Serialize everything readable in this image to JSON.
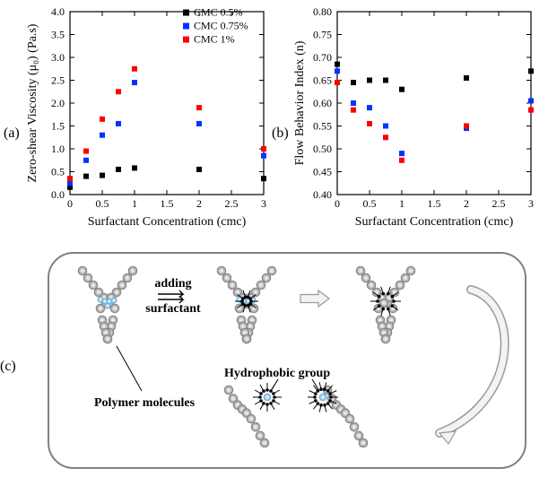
{
  "labels": {
    "a": "(a)",
    "b": "(b)",
    "c": "(c)"
  },
  "chartA": {
    "type": "scatter",
    "x_title": "Surfactant Concentration (cmc)",
    "y_title": "Zero-shear Viscosity (μ₀) (Pa.s)",
    "xlim": [
      0,
      3
    ],
    "xtick_step": 0.5,
    "ylim": [
      0,
      4
    ],
    "ytick_step": 0.5,
    "label_fontsize": 14,
    "tick_fontsize": 12,
    "marker": "square",
    "marker_size": 6,
    "axis_color": "#000000",
    "background": "#ffffff",
    "legend": {
      "x": 1.75,
      "y_top": 3.95,
      "items": [
        {
          "text": "CMC 0.5%",
          "color": "#000000"
        },
        {
          "text": "CMC 0.75%",
          "color": "#0033ff"
        },
        {
          "text": "CMC 1%",
          "color": "#ff0000"
        }
      ]
    },
    "series": [
      {
        "name": "0.5",
        "color": "#000000",
        "points": [
          [
            0.0,
            0.16
          ],
          [
            0.25,
            0.4
          ],
          [
            0.5,
            0.42
          ],
          [
            0.75,
            0.55
          ],
          [
            1.0,
            0.58
          ],
          [
            2.0,
            0.55
          ],
          [
            3.0,
            0.35
          ]
        ]
      },
      {
        "name": "0.75",
        "color": "#0033ff",
        "points": [
          [
            0.0,
            0.25
          ],
          [
            0.25,
            0.75
          ],
          [
            0.5,
            1.3
          ],
          [
            0.75,
            1.55
          ],
          [
            1.0,
            2.45
          ],
          [
            2.0,
            1.55
          ],
          [
            3.0,
            0.85
          ]
        ]
      },
      {
        "name": "1.0",
        "color": "#ff0000",
        "points": [
          [
            0.0,
            0.35
          ],
          [
            0.25,
            0.95
          ],
          [
            0.5,
            1.65
          ],
          [
            0.75,
            2.25
          ],
          [
            1.0,
            2.75
          ],
          [
            2.0,
            1.9
          ],
          [
            3.0,
            1.0
          ]
        ]
      }
    ]
  },
  "chartB": {
    "type": "scatter",
    "x_title": "Surfactant Concentration (cmc)",
    "y_title": "Flow Behavior Index (n)",
    "xlim": [
      0,
      3
    ],
    "xtick_step": 0.5,
    "ylim": [
      0.4,
      0.8
    ],
    "ytick_step": 0.05,
    "label_fontsize": 14,
    "tick_fontsize": 12,
    "marker": "square",
    "marker_size": 6,
    "axis_color": "#000000",
    "background": "#ffffff",
    "series": [
      {
        "name": "0.5",
        "color": "#000000",
        "points": [
          [
            0.0,
            0.685
          ],
          [
            0.25,
            0.645
          ],
          [
            0.5,
            0.65
          ],
          [
            0.75,
            0.65
          ],
          [
            1.0,
            0.63
          ],
          [
            2.0,
            0.655
          ],
          [
            3.0,
            0.67
          ]
        ]
      },
      {
        "name": "0.75",
        "color": "#0033ff",
        "points": [
          [
            0.0,
            0.67
          ],
          [
            0.25,
            0.6
          ],
          [
            0.5,
            0.59
          ],
          [
            0.75,
            0.55
          ],
          [
            1.0,
            0.49
          ],
          [
            2.0,
            0.545
          ],
          [
            3.0,
            0.605
          ]
        ]
      },
      {
        "name": "1.0",
        "color": "#ff0000",
        "points": [
          [
            0.0,
            0.645
          ],
          [
            0.25,
            0.585
          ],
          [
            0.5,
            0.555
          ],
          [
            0.75,
            0.525
          ],
          [
            1.0,
            0.475
          ],
          [
            2.0,
            0.55
          ],
          [
            3.0,
            0.585
          ]
        ]
      }
    ]
  },
  "diagram": {
    "type": "infographic",
    "panel_border_color": "#808080",
    "panel_border_radius": 28,
    "polymer_bead_fill": "#bfbfbf",
    "polymer_bead_stroke": "#808080",
    "hydrophobe_fill": "#a9d4ef",
    "hydrophobe_stroke": "#5fa8d3",
    "surfactant_head_fill": "#000000",
    "surfactant_tail_color": "#000000",
    "arrow_color": "#000000",
    "big_arrow_fill": "#f3f3f3",
    "big_arrow_stroke": "#9a9a9a",
    "labels": {
      "adding": "adding",
      "surfactant": "surfactant",
      "polymer": "Polymer molecules",
      "hydro": "Hydrophobic group"
    }
  }
}
